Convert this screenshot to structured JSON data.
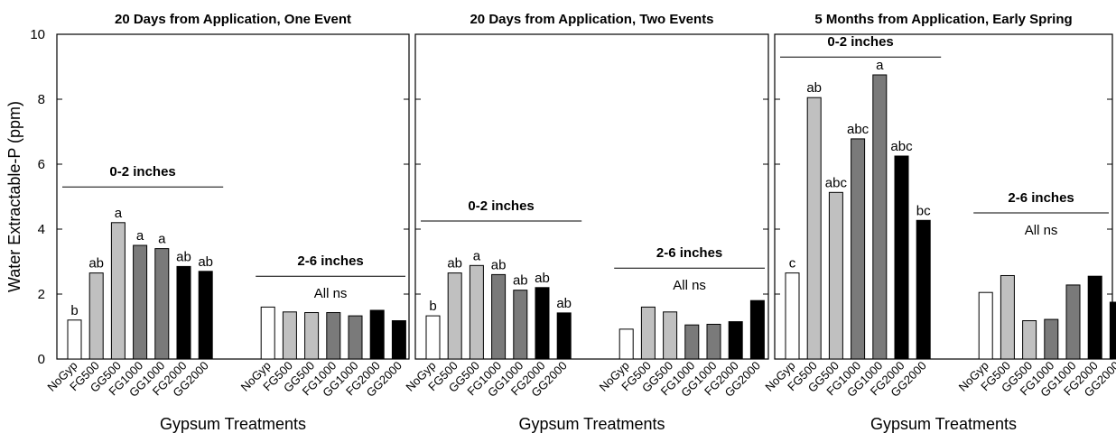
{
  "chart_data": {
    "type": "bar",
    "ylabel": "Water Extractable-P (ppm)",
    "xlabel": "Gypsum Treatments",
    "ylim": [
      0,
      10
    ],
    "yticks": [
      0,
      2,
      4,
      6,
      8,
      10
    ],
    "treatments": [
      "NoGyp",
      "FG500",
      "GG500",
      "FG1000",
      "GG1000",
      "FG2000",
      "GG2000"
    ],
    "colors": {
      "NoGyp": "#ffffff",
      "FG500": "#c0c0c0",
      "GG500": "#c0c0c0",
      "FG1000": "#7a7a7a",
      "GG1000": "#7a7a7a",
      "FG2000": "#000000",
      "GG2000": "#000000"
    },
    "panels": [
      {
        "title": "20 Days from Application, One Event",
        "groups": [
          {
            "label": "0-2 inches",
            "note": "",
            "line_y": 5.3,
            "values": [
              1.2,
              2.65,
              4.2,
              3.5,
              3.4,
              2.85,
              2.7
            ],
            "letters": [
              "b",
              "ab",
              "a",
              "a",
              "a",
              "ab",
              "ab"
            ]
          },
          {
            "label": "2-6 inches",
            "note": "All ns",
            "line_y": 2.55,
            "values": [
              1.6,
              1.45,
              1.43,
              1.43,
              1.33,
              1.5,
              1.18
            ],
            "letters": []
          }
        ]
      },
      {
        "title": "20 Days from Application, Two Events",
        "groups": [
          {
            "label": "0-2 inches",
            "note": "",
            "line_y": 4.25,
            "values": [
              1.33,
              2.65,
              2.88,
              2.6,
              2.12,
              2.2,
              1.42
            ],
            "letters": [
              "b",
              "ab",
              "a",
              "ab",
              "ab",
              "ab",
              "ab"
            ]
          },
          {
            "label": "2-6 inches",
            "note": "All ns",
            "line_y": 2.8,
            "values": [
              0.92,
              1.6,
              1.45,
              1.05,
              1.07,
              1.15,
              1.8
            ],
            "letters": []
          }
        ]
      },
      {
        "title": "5 Months from Application, Early Spring",
        "groups": [
          {
            "label": "0-2 inches",
            "note": "",
            "line_y": 9.3,
            "values": [
              2.65,
              8.05,
              5.13,
              6.78,
              8.75,
              6.25,
              4.27
            ],
            "letters": [
              "c",
              "ab",
              "abc",
              "abc",
              "a",
              "abc",
              "bc"
            ]
          },
          {
            "label": "2-6 inches",
            "note": "All ns",
            "line_y": 4.5,
            "values": [
              2.05,
              2.57,
              1.18,
              1.22,
              2.28,
              2.55,
              1.75
            ],
            "letters": []
          }
        ]
      }
    ]
  }
}
